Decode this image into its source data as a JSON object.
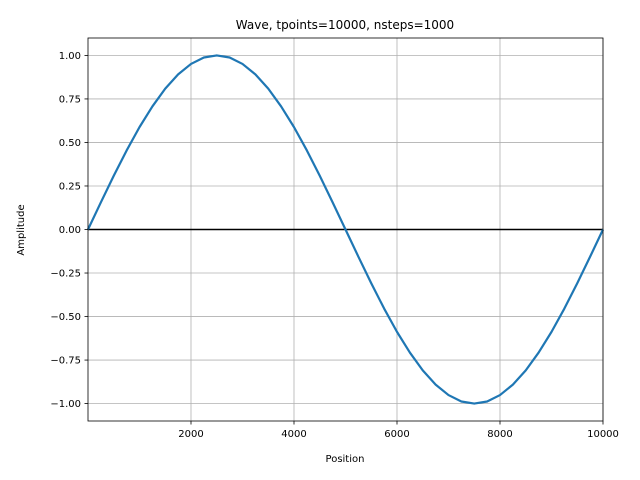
{
  "chart_data": {
    "type": "line",
    "title": "Wave, tpoints=10000, nsteps=1000",
    "xlabel": "Position",
    "ylabel": "Amplitude",
    "xlim": [
      0,
      10000
    ],
    "ylim": [
      -1.1,
      1.1
    ],
    "grid": true,
    "xticks": [
      2000,
      4000,
      6000,
      8000,
      10000
    ],
    "xtick_labels": [
      "2000",
      "4000",
      "6000",
      "8000",
      "10000"
    ],
    "yticks": [
      1.0,
      0.75,
      0.5,
      0.25,
      0.0,
      -0.25,
      -0.5,
      -0.75,
      -1.0
    ],
    "ytick_labels": [
      "1.00",
      "0.75",
      "0.50",
      "0.25",
      "0.00",
      "−0.25",
      "−0.50",
      "−0.75",
      "−1.00"
    ],
    "series": [
      {
        "color": "#1f77b4",
        "x": [
          0,
          250,
          500,
          750,
          1000,
          1250,
          1500,
          1750,
          2000,
          2250,
          2500,
          2750,
          3000,
          3250,
          3500,
          3750,
          4000,
          4250,
          4500,
          4750,
          5000,
          5250,
          5500,
          5750,
          6000,
          6250,
          6500,
          6750,
          7000,
          7250,
          7500,
          7750,
          8000,
          8250,
          8500,
          8750,
          9000,
          9250,
          9500,
          9750,
          10000
        ],
        "y": [
          0.0,
          0.156,
          0.309,
          0.454,
          0.588,
          0.707,
          0.809,
          0.891,
          0.951,
          0.988,
          1.0,
          0.988,
          0.951,
          0.891,
          0.809,
          0.707,
          0.588,
          0.454,
          0.309,
          0.156,
          0.0,
          -0.156,
          -0.309,
          -0.454,
          -0.588,
          -0.707,
          -0.809,
          -0.891,
          -0.951,
          -0.988,
          -1.0,
          -0.988,
          -0.951,
          -0.891,
          -0.809,
          -0.707,
          -0.588,
          -0.454,
          -0.309,
          -0.156,
          0.0
        ]
      }
    ],
    "reference_line": {
      "y": 0.0,
      "color": "#000000"
    }
  }
}
